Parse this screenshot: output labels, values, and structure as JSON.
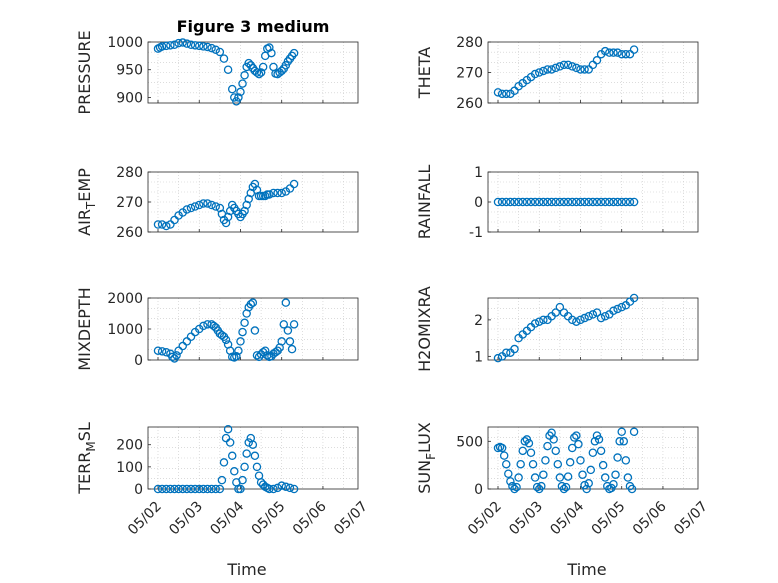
{
  "chart_data": [
    {
      "type": "scatter",
      "title": "Figure 3 medium",
      "ylabel": "PRESSURE",
      "xlabel": "",
      "ylim": [
        890,
        1000
      ],
      "yticks": [
        "900",
        "950",
        "1000"
      ],
      "x": [
        1.0,
        1.05,
        1.1,
        1.2,
        1.3,
        1.4,
        1.5,
        1.6,
        1.7,
        1.8,
        1.9,
        2.0,
        2.1,
        2.2,
        2.3,
        2.4,
        2.5,
        2.6,
        2.7,
        2.8,
        2.85,
        2.9,
        2.95,
        3.0,
        3.05,
        3.1,
        3.15,
        3.2,
        3.25,
        3.3,
        3.35,
        3.4,
        3.45,
        3.5,
        3.55,
        3.6,
        3.65,
        3.7,
        3.75,
        3.8,
        3.85,
        3.9,
        3.95,
        4.0,
        4.05,
        4.1,
        4.15,
        4.2,
        4.25,
        4.3
      ],
      "values": [
        988,
        990,
        992,
        993,
        994,
        995,
        998,
        999,
        997,
        995,
        994,
        993,
        992,
        991,
        989,
        986,
        982,
        970,
        950,
        915,
        900,
        893,
        900,
        910,
        925,
        940,
        955,
        962,
        958,
        953,
        948,
        945,
        942,
        945,
        955,
        975,
        988,
        990,
        980,
        955,
        943,
        942,
        945,
        948,
        952,
        958,
        965,
        970,
        975,
        980
      ]
    },
    {
      "type": "scatter",
      "title": "",
      "ylabel": "THETA",
      "xlabel": "",
      "ylim": [
        260,
        280
      ],
      "yticks": [
        "260",
        "270",
        "280"
      ],
      "x": [
        1.0,
        1.1,
        1.2,
        1.3,
        1.4,
        1.5,
        1.6,
        1.7,
        1.8,
        1.9,
        2.0,
        2.1,
        2.2,
        2.3,
        2.4,
        2.5,
        2.6,
        2.7,
        2.8,
        2.9,
        3.0,
        3.1,
        3.2,
        3.3,
        3.4,
        3.5,
        3.6,
        3.7,
        3.8,
        3.9,
        4.0,
        4.1,
        4.2,
        4.3
      ],
      "values": [
        263.5,
        263,
        263,
        263,
        264,
        265.5,
        266.5,
        267.5,
        268.5,
        269.5,
        270,
        270.5,
        271,
        271,
        271.5,
        272,
        272.5,
        272.5,
        272,
        271.5,
        271,
        271,
        271,
        272.5,
        274,
        276,
        277,
        276.5,
        276.5,
        276.5,
        276,
        276,
        276,
        277.5
      ]
    },
    {
      "type": "scatter",
      "title": "",
      "ylabel": "AIR_TEMP",
      "xlabel": "",
      "ylim": [
        260,
        280
      ],
      "yticks": [
        "260",
        "270",
        "280"
      ],
      "x": [
        1.0,
        1.1,
        1.2,
        1.3,
        1.4,
        1.5,
        1.6,
        1.7,
        1.8,
        1.9,
        2.0,
        2.1,
        2.2,
        2.3,
        2.4,
        2.5,
        2.55,
        2.6,
        2.65,
        2.7,
        2.75,
        2.8,
        2.85,
        2.9,
        2.95,
        3.0,
        3.05,
        3.1,
        3.15,
        3.2,
        3.25,
        3.3,
        3.35,
        3.4,
        3.45,
        3.5,
        3.55,
        3.6,
        3.65,
        3.7,
        3.8,
        3.9,
        4.0,
        4.1,
        4.2,
        4.3
      ],
      "values": [
        262.5,
        262.5,
        262,
        262.5,
        264,
        265.5,
        266.5,
        267.5,
        268,
        268.5,
        269,
        269.5,
        269.5,
        269,
        268.5,
        268,
        266,
        264,
        263,
        265,
        267,
        269,
        268,
        267,
        266,
        265,
        266,
        267,
        269,
        271,
        273,
        275,
        276,
        274,
        272,
        272,
        272,
        272,
        272.5,
        272.5,
        273,
        273,
        273,
        273.5,
        274.5,
        276
      ]
    },
    {
      "type": "scatter",
      "title": "",
      "ylabel": "RAINFALL",
      "xlabel": "",
      "ylim": [
        -1,
        1
      ],
      "yticks": [
        "-1",
        "0",
        "1"
      ],
      "x": [
        1.0,
        1.1,
        1.2,
        1.3,
        1.4,
        1.5,
        1.6,
        1.7,
        1.8,
        1.9,
        2.0,
        2.1,
        2.2,
        2.3,
        2.4,
        2.5,
        2.6,
        2.7,
        2.8,
        2.9,
        3.0,
        3.1,
        3.2,
        3.3,
        3.4,
        3.5,
        3.6,
        3.7,
        3.8,
        3.9,
        4.0,
        4.1,
        4.2,
        4.3
      ],
      "values": [
        0,
        0,
        0,
        0,
        0,
        0,
        0,
        0,
        0,
        0,
        0,
        0,
        0,
        0,
        0,
        0,
        0,
        0,
        0,
        0,
        0,
        0,
        0,
        0,
        0,
        0,
        0,
        0,
        0,
        0,
        0,
        0,
        0,
        0
      ]
    },
    {
      "type": "scatter",
      "title": "",
      "ylabel": "MIXDEPTH",
      "xlabel": "",
      "ylim": [
        0,
        2000
      ],
      "yticks": [
        "0",
        "1000",
        "2000"
      ],
      "x": [
        1.0,
        1.1,
        1.2,
        1.3,
        1.35,
        1.4,
        1.45,
        1.5,
        1.6,
        1.7,
        1.8,
        1.9,
        2.0,
        2.1,
        2.2,
        2.3,
        2.35,
        2.4,
        2.45,
        2.5,
        2.55,
        2.6,
        2.65,
        2.7,
        2.75,
        2.8,
        2.85,
        2.9,
        2.95,
        3.0,
        3.05,
        3.1,
        3.15,
        3.2,
        3.25,
        3.3,
        3.35,
        3.4,
        3.45,
        3.5,
        3.55,
        3.6,
        3.65,
        3.7,
        3.75,
        3.8,
        3.85,
        3.9,
        3.95,
        4.0,
        4.05,
        4.1,
        4.15,
        4.2,
        4.25,
        4.3
      ],
      "values": [
        300,
        280,
        250,
        200,
        100,
        50,
        150,
        300,
        450,
        600,
        750,
        900,
        1000,
        1100,
        1150,
        1150,
        1100,
        1050,
        950,
        850,
        800,
        750,
        650,
        500,
        300,
        100,
        80,
        120,
        300,
        600,
        900,
        1200,
        1500,
        1700,
        1800,
        1850,
        950,
        150,
        100,
        180,
        250,
        300,
        150,
        100,
        120,
        200,
        250,
        300,
        400,
        600,
        1150,
        1850,
        950,
        600,
        350,
        1150
      ]
    },
    {
      "type": "scatter",
      "title": "",
      "ylabel": "H2OMIXRA",
      "xlabel": "",
      "ylim": [
        0.9,
        2.6
      ],
      "yticks": [
        "1",
        "2"
      ],
      "x": [
        1.0,
        1.1,
        1.2,
        1.3,
        1.4,
        1.5,
        1.6,
        1.7,
        1.8,
        1.9,
        2.0,
        2.1,
        2.2,
        2.3,
        2.4,
        2.5,
        2.6,
        2.7,
        2.8,
        2.9,
        3.0,
        3.1,
        3.2,
        3.3,
        3.4,
        3.5,
        3.6,
        3.7,
        3.8,
        3.9,
        4.0,
        4.1,
        4.2,
        4.3
      ],
      "values": [
        0.95,
        1,
        1.1,
        1.1,
        1.2,
        1.5,
        1.6,
        1.7,
        1.8,
        1.9,
        1.95,
        2,
        2,
        2.1,
        2.2,
        2.35,
        2.2,
        2.1,
        2,
        1.95,
        2,
        2.05,
        2.1,
        2.15,
        2.2,
        2.05,
        2.1,
        2.15,
        2.25,
        2.3,
        2.35,
        2.4,
        2.5,
        2.6
      ]
    },
    {
      "type": "scatter",
      "title": "",
      "ylabel": "TERR_MSL",
      "xlabel": "Time",
      "ylim": [
        0,
        280
      ],
      "yticks": [
        "0",
        "100",
        "200"
      ],
      "xticks": [
        "05/02",
        "05/03",
        "05/04",
        "05/05",
        "05/06",
        "05/07"
      ],
      "x": [
        1.0,
        1.1,
        1.2,
        1.3,
        1.4,
        1.5,
        1.6,
        1.7,
        1.8,
        1.9,
        2.0,
        2.1,
        2.2,
        2.3,
        2.4,
        2.5,
        2.55,
        2.6,
        2.65,
        2.7,
        2.75,
        2.8,
        2.85,
        2.9,
        2.95,
        3.0,
        3.05,
        3.1,
        3.15,
        3.2,
        3.25,
        3.3,
        3.35,
        3.4,
        3.45,
        3.5,
        3.55,
        3.6,
        3.65,
        3.7,
        3.8,
        3.9,
        4.0,
        4.1,
        4.2,
        4.3
      ],
      "values": [
        0,
        0,
        0,
        0,
        0,
        0,
        0,
        0,
        0,
        0,
        0,
        0,
        0,
        0,
        0,
        0,
        40,
        120,
        230,
        270,
        210,
        150,
        80,
        30,
        0,
        0,
        40,
        100,
        160,
        210,
        230,
        200,
        150,
        100,
        60,
        30,
        20,
        10,
        5,
        0,
        0,
        5,
        15,
        10,
        5,
        0
      ]
    },
    {
      "type": "scatter",
      "title": "",
      "ylabel": "SUN_FLUX",
      "xlabel": "Time",
      "ylim": [
        0,
        650
      ],
      "yticks": [
        "0",
        "500"
      ],
      "xticks": [
        "05/02",
        "05/03",
        "05/04",
        "05/05",
        "05/06",
        "05/07"
      ],
      "x": [
        1.0,
        1.05,
        1.1,
        1.15,
        1.2,
        1.25,
        1.3,
        1.35,
        1.4,
        1.45,
        1.5,
        1.55,
        1.6,
        1.65,
        1.7,
        1.75,
        1.8,
        1.85,
        1.9,
        1.95,
        2.0,
        2.05,
        2.1,
        2.15,
        2.2,
        2.25,
        2.3,
        2.35,
        2.4,
        2.45,
        2.5,
        2.55,
        2.6,
        2.65,
        2.7,
        2.75,
        2.8,
        2.85,
        2.9,
        2.95,
        3.0,
        3.05,
        3.1,
        3.15,
        3.2,
        3.25,
        3.3,
        3.35,
        3.4,
        3.45,
        3.5,
        3.55,
        3.6,
        3.65,
        3.7,
        3.75,
        3.8,
        3.85,
        3.9,
        3.95,
        4.0,
        4.05,
        4.1,
        4.15,
        4.2,
        4.25,
        4.3
      ],
      "values": [
        430,
        440,
        430,
        350,
        260,
        160,
        80,
        30,
        0,
        20,
        120,
        260,
        400,
        500,
        520,
        480,
        380,
        260,
        120,
        20,
        0,
        30,
        150,
        300,
        450,
        560,
        590,
        520,
        400,
        260,
        120,
        30,
        0,
        20,
        130,
        280,
        430,
        540,
        560,
        470,
        300,
        150,
        40,
        0,
        60,
        200,
        380,
        500,
        560,
        520,
        400,
        250,
        120,
        30,
        0,
        10,
        50,
        150,
        330,
        500,
        600,
        500,
        300,
        120,
        30,
        0,
        600
      ]
    }
  ]
}
